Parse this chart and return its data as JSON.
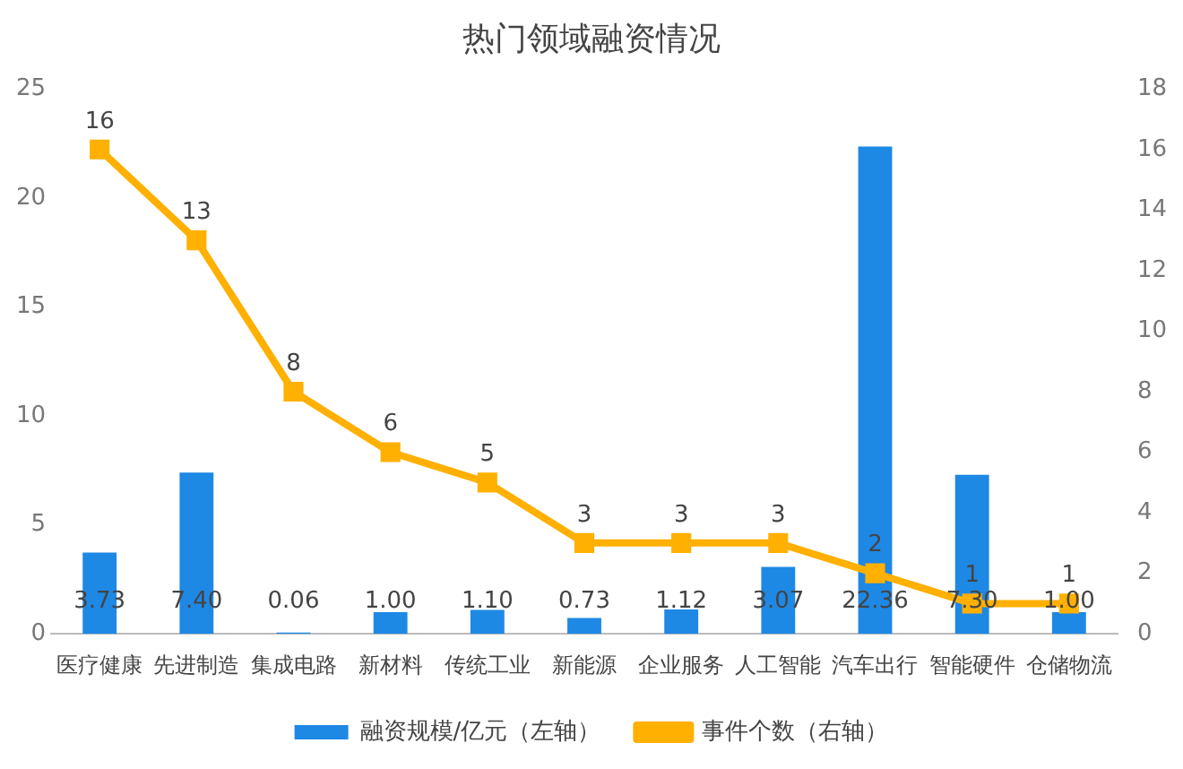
{
  "chart_data": {
    "type": "bar",
    "title": "热门领域融资情况",
    "categories": [
      "医疗健康",
      "先进制造",
      "集成电路",
      "新材料",
      "传统工业",
      "新能源",
      "企业服务",
      "人工智能",
      "汽车出行",
      "智能硬件",
      "仓储物流"
    ],
    "series": [
      {
        "name": "融资规模/亿元（左轴）",
        "color": "#1e88e5",
        "values": [
          3.73,
          7.4,
          0.06,
          1.0,
          1.1,
          0.73,
          1.12,
          3.07,
          22.36,
          7.3,
          1.0
        ],
        "value_labels": [
          "3.73",
          "7.40",
          "0.06",
          "1.00",
          "1.10",
          "0.73",
          "1.12",
          "3.07",
          "22.36",
          "7.30",
          "1.00"
        ]
      },
      {
        "name": "事件个数（右轴）",
        "type": "line",
        "axis": "y2",
        "color": "#ffb000",
        "values": [
          16,
          13,
          8,
          6,
          5,
          3,
          3,
          3,
          2,
          1,
          1
        ],
        "value_labels": [
          "16",
          "13",
          "8",
          "6",
          "5",
          "3",
          "3",
          "3",
          "2",
          "1",
          "1"
        ]
      }
    ],
    "ylim": [
      0,
      25
    ],
    "yticks": [
      0,
      5,
      10,
      15,
      20,
      25
    ],
    "y2lim": [
      0,
      18
    ],
    "y2ticks": [
      0,
      2,
      4,
      6,
      8,
      10,
      12,
      14,
      16,
      18
    ],
    "grid": false,
    "legend": "bottom",
    "marker": "square",
    "line_style": "solid"
  }
}
